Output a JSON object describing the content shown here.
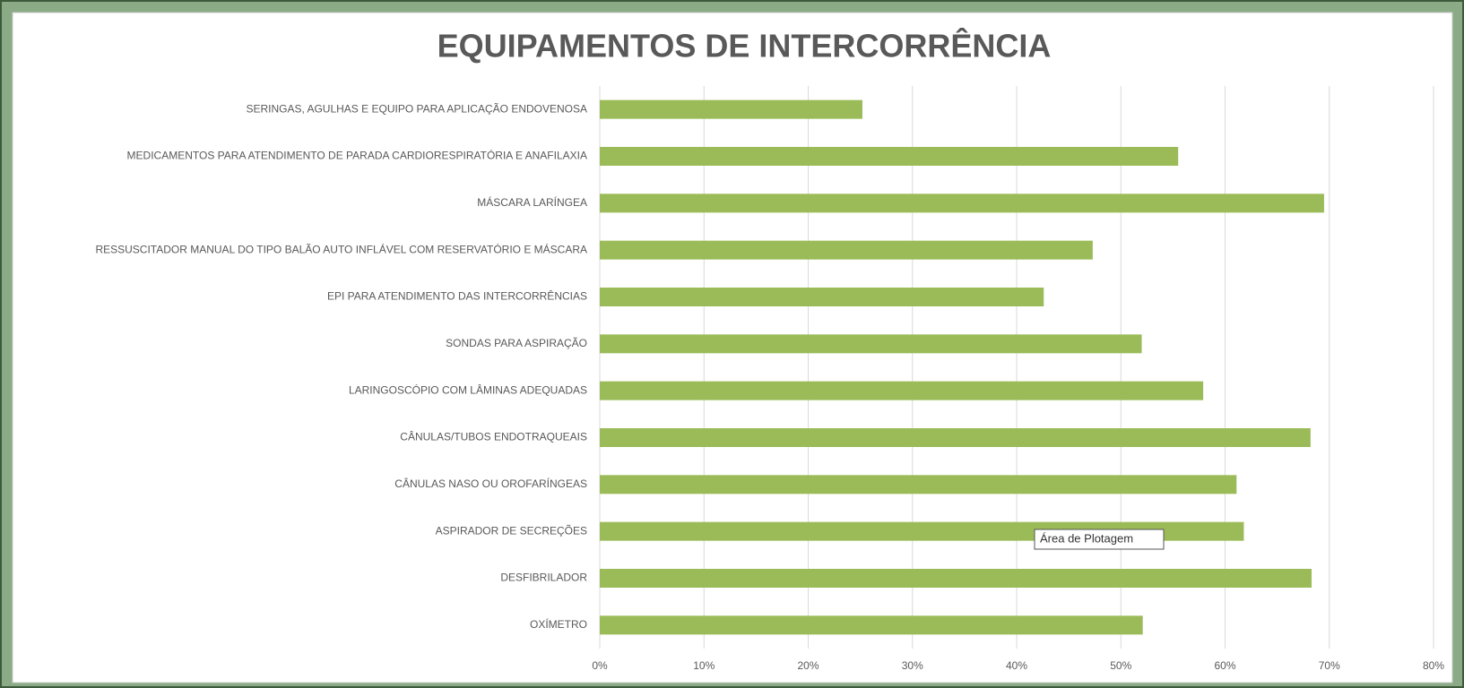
{
  "chart_data": {
    "type": "hbar",
    "title": "EQUIPAMENTOS DE INTERCORRÊNCIA",
    "categories": [
      "SERINGAS, AGULHAS E  EQUIPO PARA APLICAÇÃO ENDOVENOSA",
      "MEDICAMENTOS PARA ATENDIMENTO DE PARADA CARDIORESPIRATÓRIA E ANAFILAXIA",
      "MÁSCARA LARÍNGEA",
      "RESSUSCITADOR MANUAL DO TIPO BALÃO AUTO INFLÁVEL COM RESERVATÓRIO E MÁSCARA",
      "EPI PARA ATENDIMENTO DAS INTERCORRÊNCIAS",
      "SONDAS PARA ASPIRAÇÃO",
      "LARINGOSCÓPIO COM LÂMINAS ADEQUADAS",
      "CÂNULAS/TUBOS ENDOTRAQUEAIS",
      "CÂNULAS NASO OU OROFARÍNGEAS",
      "ASPIRADOR DE SECREÇÕES",
      "DESFIBRILADOR",
      "OXÍMETRO"
    ],
    "values": [
      25.2,
      55.5,
      69.5,
      47.3,
      42.6,
      52,
      57.9,
      68.2,
      61.1,
      61.8,
      68.3,
      52.1
    ],
    "color": "#9bbb59",
    "xlim": [
      0,
      80
    ],
    "xticks": [
      {
        "value": 0,
        "label": "0%"
      },
      {
        "value": 10,
        "label": "10%"
      },
      {
        "value": 20,
        "label": "20%"
      },
      {
        "value": 30,
        "label": "30%"
      },
      {
        "value": 40,
        "label": "40%"
      },
      {
        "value": 50,
        "label": "50%"
      },
      {
        "value": 60,
        "label": "60%"
      },
      {
        "value": 70,
        "label": "70%"
      },
      {
        "value": 80,
        "label": "80%"
      }
    ],
    "grid": true,
    "tooltip": "Área de Plotagem"
  }
}
